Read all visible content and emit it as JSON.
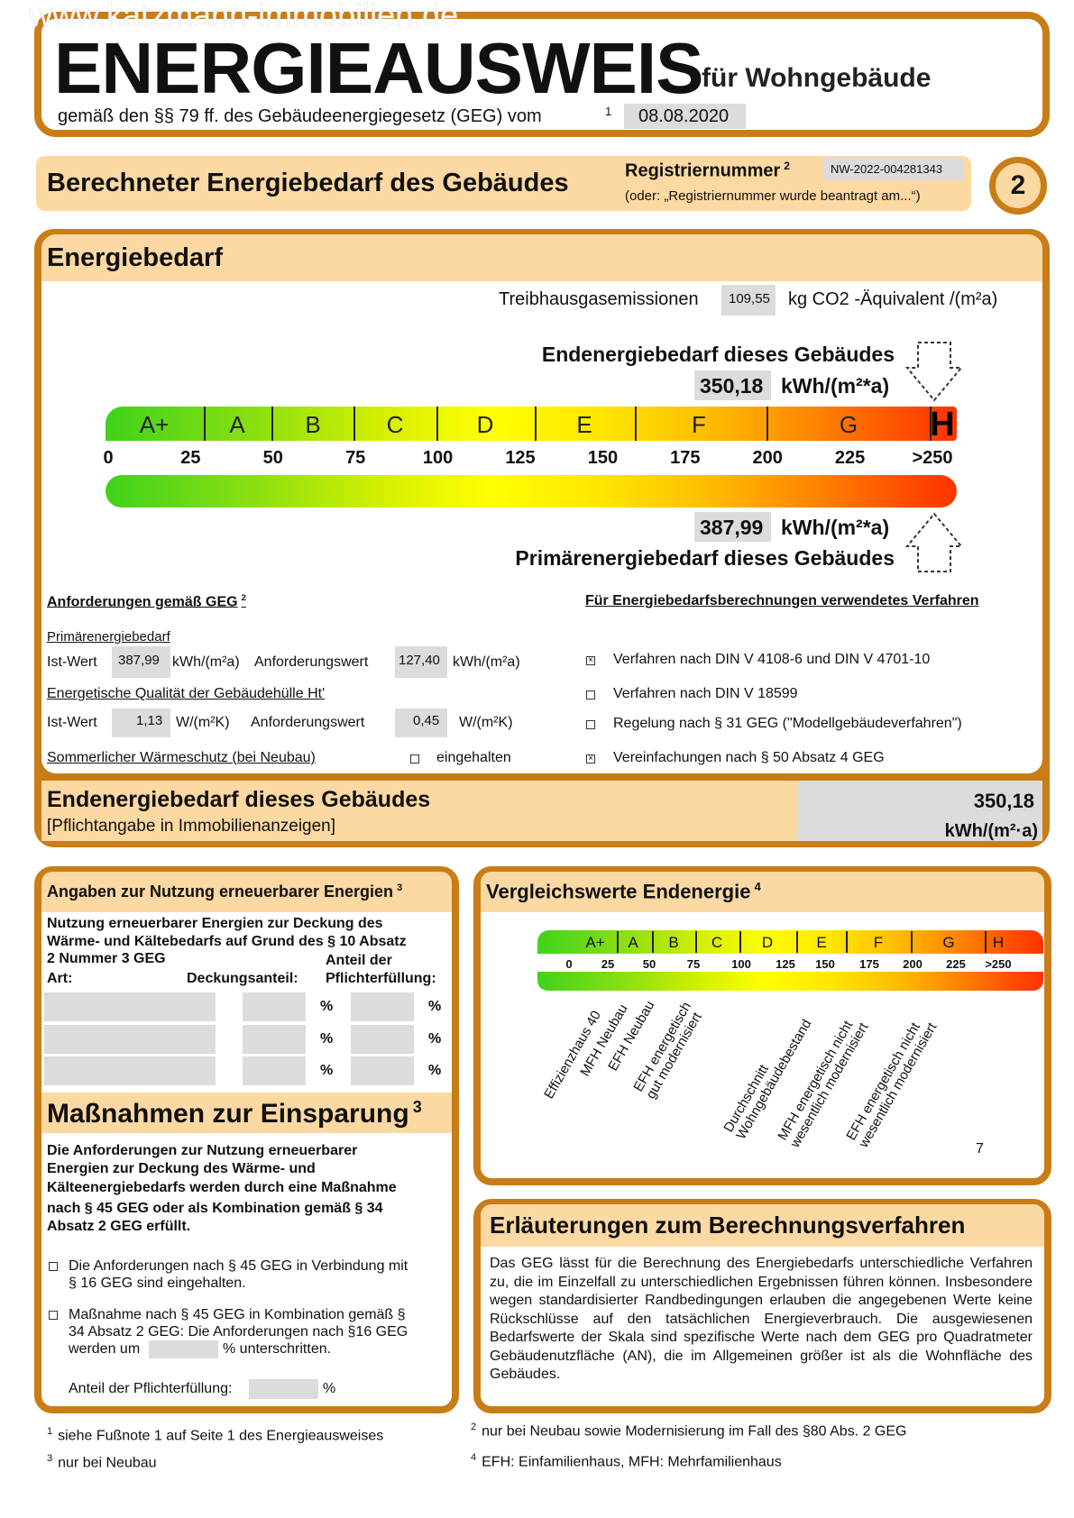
{
  "watermark": "www.katzmann-immobilien.de",
  "header": {
    "title": "ENERGIEAUSWEIS",
    "subtitle": "für Wohngebäude",
    "law": "gemäß den §§ 79 ff. des Gebäudeenergiegesetz (GEG) vom",
    "law_sup": "1",
    "date": "08.08.2020"
  },
  "band": {
    "title": "Berechneter Energiebedarf des Gebäudes",
    "reg_label": "Registriernummer",
    "reg_sup": "2",
    "reg_number": "NW-2022-004281343",
    "reg_note": "(oder: „Registriernummer wurde beantragt am...“)",
    "page": "2"
  },
  "energy": {
    "title": "Energiebedarf",
    "ghg_label": "Treibhausgasemissionen",
    "ghg_value": "109,55",
    "ghg_unit": "kg CO2 -Äquivalent /(m²a)",
    "end_label": "Endenergiebedarf dieses Gebäudes",
    "end_value": "350,18",
    "unit": "kWh/(m²*a)",
    "primary_label": "Primärenergiebedarf dieses Gebäudes",
    "primary_value": "387,99",
    "classes": [
      "A+",
      "A",
      "B",
      "C",
      "D",
      "E",
      "F",
      "G",
      "H"
    ],
    "ticks": [
      "0",
      "25",
      "50",
      "75",
      "100",
      "125",
      "150",
      "175",
      "200",
      "225",
      ">250"
    ],
    "current_class": "H"
  },
  "requirements": {
    "title": "Anforderungen gemäß GEG",
    "title_sup": "2",
    "primary_title": "Primärenergiebedarf",
    "ist": "Ist-Wert",
    "anf": "Anforderungswert",
    "primary_ist": "387,99",
    "primary_unit": "kWh/(m²a)",
    "primary_anf": "127,40",
    "hull_title": "Energetische Qualität der Gebäudehülle Ht'",
    "hull_ist": "1,13",
    "hull_unit": "W/(m²K)",
    "hull_anf": "0,45",
    "summer_title": "Sommerlicher Wärmeschutz (bei Neubau)",
    "summer_label": "eingehalten",
    "summer_checked": false
  },
  "method": {
    "title": "Für Energiebedarfsberechnungen verwendetes Verfahren",
    "items": [
      {
        "label": "Verfahren nach DIN V 4108-6 und DIN V 4701-10",
        "checked": true
      },
      {
        "label": "Verfahren nach DIN V 18599",
        "checked": false
      },
      {
        "label": "Regelung nach § 31 GEG (\"Modellgebäudeverfahren\")",
        "checked": false
      },
      {
        "label": "Vereinfachungen nach § 50 Absatz 4 GEG",
        "checked": true
      }
    ]
  },
  "summary": {
    "title": "Endenergiebedarf dieses Gebäudes",
    "note": "[Pflichtangabe in Immobilienanzeigen]",
    "value": "350,18",
    "unit": "kWh/(m²·a)"
  },
  "renewable": {
    "title": "Angaben zur Nutzung erneuerbarer Energien",
    "title_sup": "3",
    "intro": [
      "Nutzung erneuerbarer Energien zur Deckung des",
      "Wärme- und Kältebedarfs auf Grund des § 10 Absatz",
      "2 Nummer 3 GEG"
    ],
    "col_art": "Art:",
    "col_deckung": "Deckungsanteil:",
    "col_anteil1": "Anteil der",
    "col_anteil2": "Pflichterfüllung:",
    "percent": "%"
  },
  "measures": {
    "title": "Maßnahmen zur Einsparung",
    "title_sup": "3",
    "intro": [
      "Die Anforderungen zur Nutzung erneuerbarer",
      "Energien zur Deckung des Wärme- und",
      "Kälteenergiebedarfs werden durch eine Maßnahme",
      "nach § 45 GEG oder als Kombination gemäß § 34",
      "Absatz 2 GEG erfüllt."
    ],
    "opt1": [
      "Die Anforderungen nach § 45 GEG in Verbindung mit",
      "§ 16 GEG sind eingehalten."
    ],
    "opt2": [
      "Maßnahme nach § 45 GEG in Kombination gemäß §",
      "34 Absatz 2 GEG: Die Anforderungen nach §16 GEG",
      "werden um",
      "% unterschritten."
    ],
    "share": "Anteil der Pflichterfüllung:",
    "percent": "%"
  },
  "comparison": {
    "title": "Vergleichswerte Endenergie",
    "title_sup": "4",
    "labels": [
      "Effizienzhaus 40",
      "MFH Neubau",
      "EFH Neubau",
      "EFH energetisch\ngut modernisiert",
      "Durchschnitt\nWohngebäudebestand",
      "MFH energetisch nicht\nwesentlich modernisiert",
      "EFH energetisch nicht\nwesentlich modernisiert"
    ],
    "page_number": "7"
  },
  "explanation": {
    "title": "Erläuterungen zum Berechnungsverfahren",
    "text": "Das GEG lässt für die Berechnung des Energiebedarfs unterschiedliche Verfahren zu, die im Einzelfall zu unterschiedlichen Ergebnissen führen können. Insbesondere wegen standardisierter Randbedingungen erlauben die angegebenen Werte keine Rückschlüsse auf den tatsächlichen Energieverbrauch. Die ausgewiesenen Bedarfswerte der Skala sind spezifische Werte nach dem GEG pro Quadratmeter Gebäudenutzfläche (AN), die im Allgemeinen größer ist als die Wohnfläche des Gebäudes."
  },
  "footnotes": [
    {
      "n": "1",
      "text": "siehe Fußnote 1 auf Seite 1 des Energieausweises"
    },
    {
      "n": "2",
      "text": "nur bei Neubau sowie Modernisierung im Fall des §80 Abs. 2 GEG"
    },
    {
      "n": "3",
      "text": "nur bei Neubau"
    },
    {
      "n": "4",
      "text": "EFH: Einfamilienhaus, MFH: Mehrfamilienhaus"
    }
  ],
  "colors": {
    "frame": "#c97d17",
    "band": "#fcd8a2",
    "field": "#dcdcdc"
  }
}
